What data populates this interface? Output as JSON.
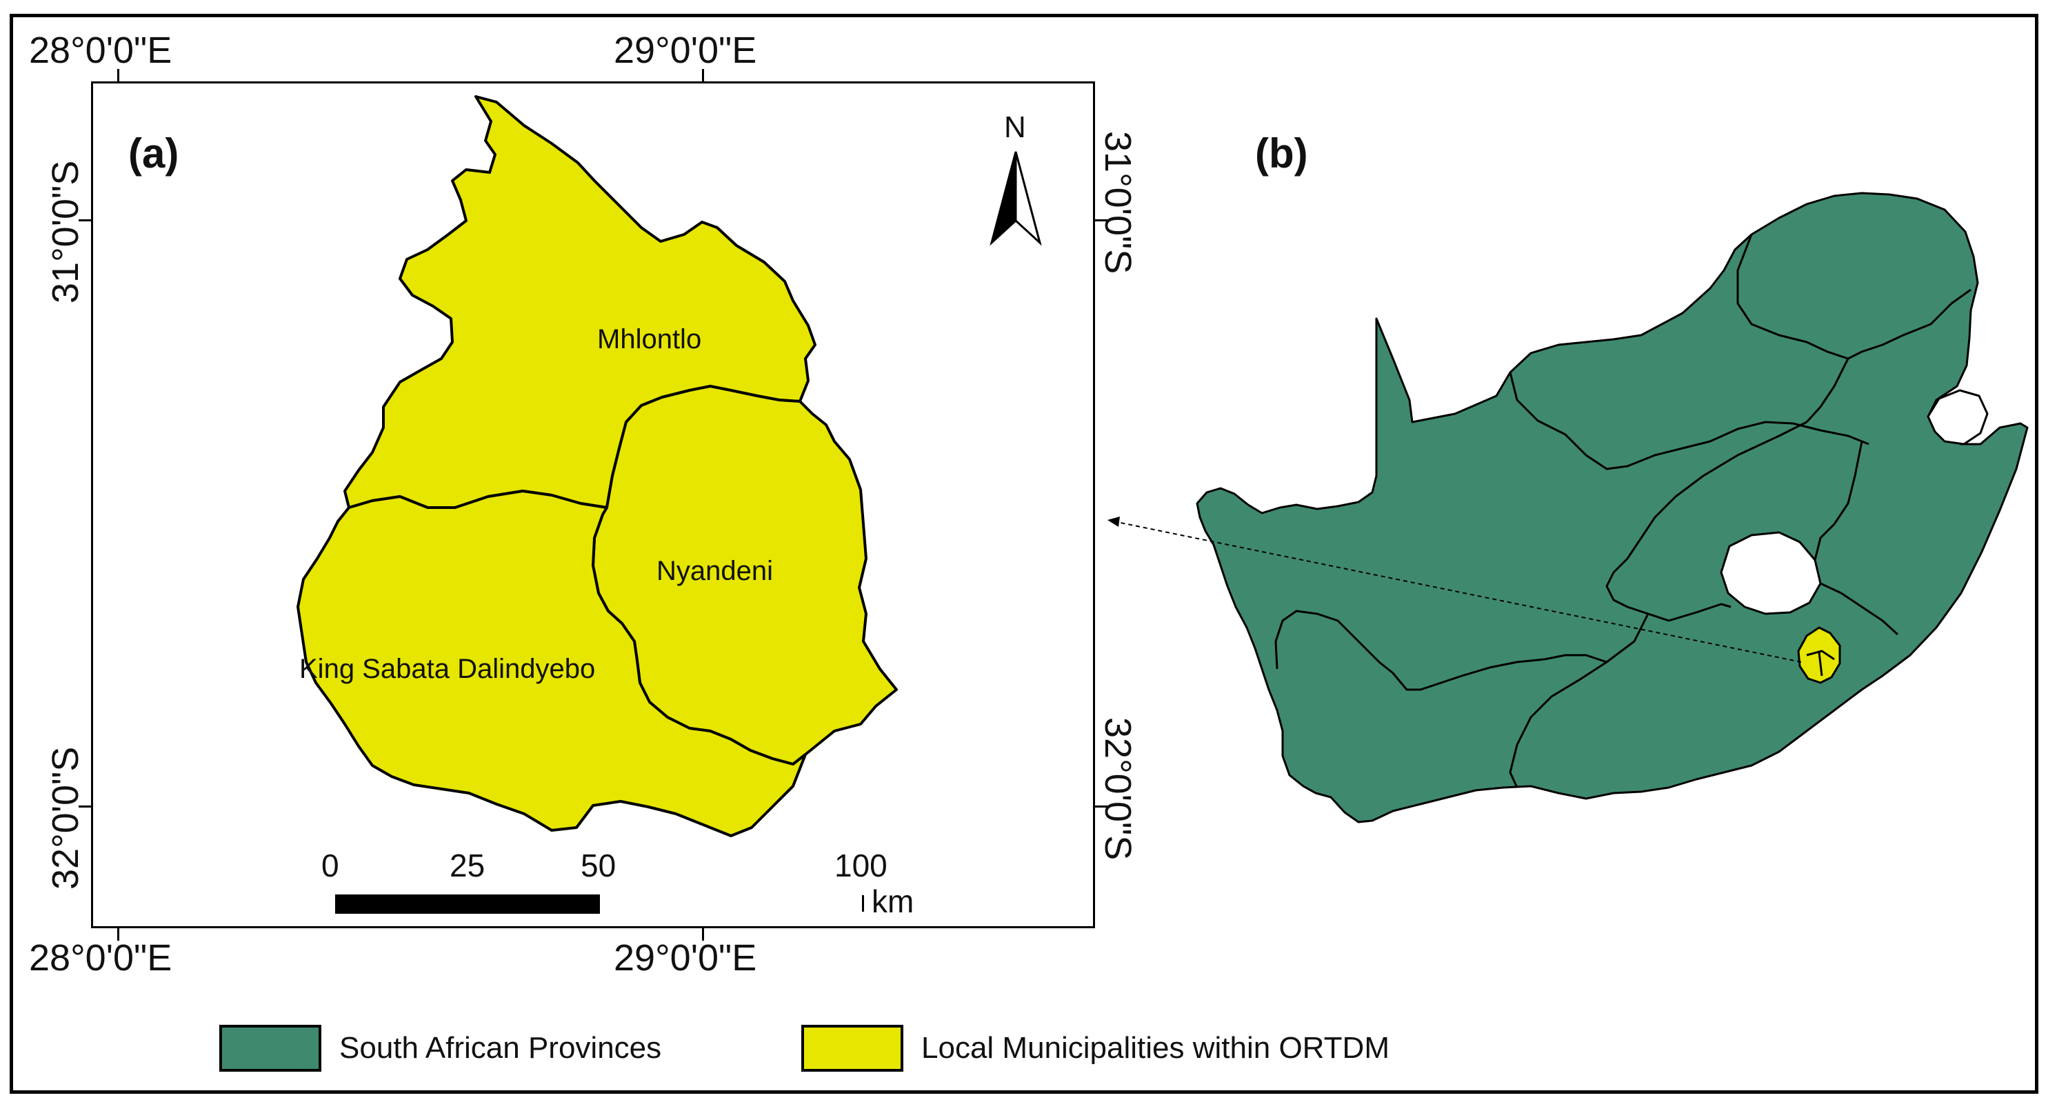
{
  "figure": {
    "panel_a_label": "(a)",
    "panel_b_label": "(b)",
    "coords": {
      "lon_28": "28°0'0\"E",
      "lon_29": "29°0'0\"E",
      "lat_31": "31°0'0\"S",
      "lat_32": "32°0'0\"S"
    },
    "north_label": "N",
    "municipalities": [
      "Mhlontlo",
      "Nyandeni",
      "King Sabata Dalindyebo"
    ],
    "scale": {
      "ticks": [
        "0",
        "25",
        "50",
        "100"
      ],
      "unit": "km"
    },
    "legend": [
      {
        "label": "South African Provinces",
        "color": "#3f8a6e"
      },
      {
        "label": "Local Municipalities within ORTDM",
        "color": "#e6e600"
      }
    ]
  }
}
